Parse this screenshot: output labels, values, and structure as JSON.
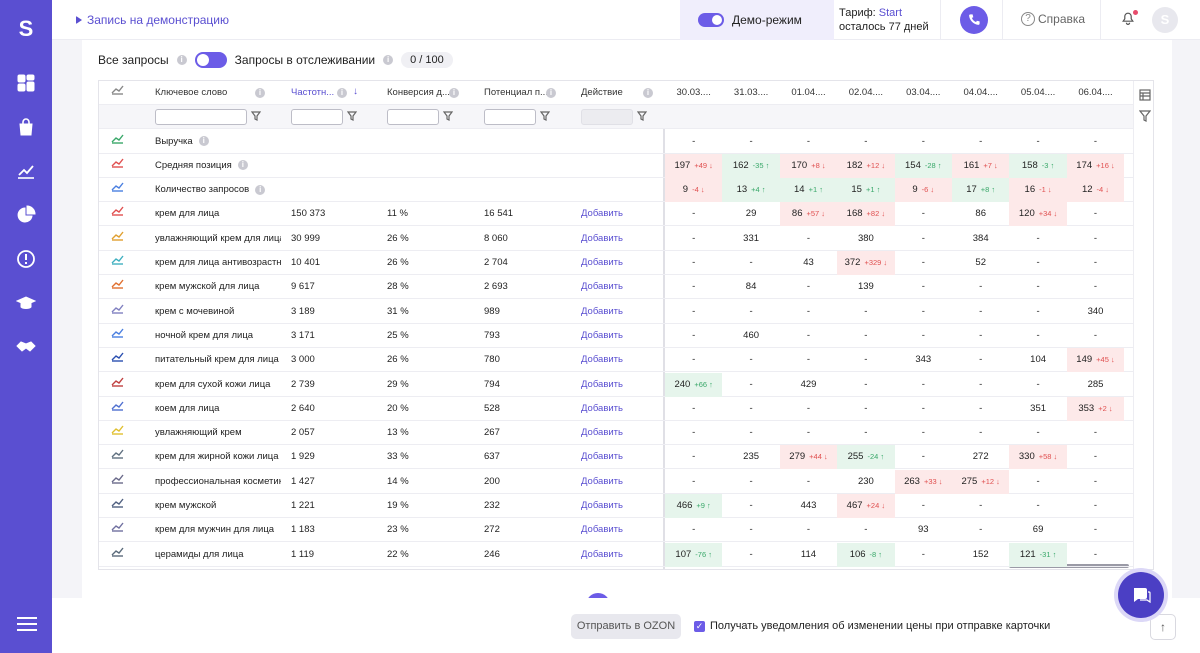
{
  "header": {
    "demo_link": "Запись на демонстрацию",
    "demo_mode": "Демо-режим",
    "tariff_prefix": "Тариф: ",
    "tariff_plan": "Start",
    "tariff_days": "осталось 77 дней",
    "help": "Справка",
    "avatar_letter": "S"
  },
  "sidebar": {
    "logo": "S",
    "items": [
      "dashboard-icon",
      "bag-icon",
      "chart-icon",
      "pie-icon",
      "alert-icon",
      "graduation-icon",
      "handshake-icon"
    ]
  },
  "filters": {
    "all_queries": "Все запросы",
    "tracked": "Запросы в отслеживании",
    "counter": "0 / 100"
  },
  "table": {
    "columns": [
      "Ключевое слово",
      "Частотн...",
      "Конверсия д...",
      "Потенциал п...",
      "Действие"
    ],
    "dates": [
      "30.03....",
      "31.03....",
      "01.04....",
      "02.04....",
      "03.04....",
      "04.04....",
      "05.04....",
      "06.04...."
    ],
    "add_label": "Добавить",
    "summary": [
      {
        "name": "Выручка",
        "color": "#3aa86a",
        "values": [
          [
            "-"
          ],
          [
            "-"
          ],
          [
            "-"
          ],
          [
            "-"
          ],
          [
            "-"
          ],
          [
            "-"
          ],
          [
            "-"
          ],
          [
            "-"
          ]
        ]
      },
      {
        "name": "Средняя позиция",
        "color": "#e05050",
        "values": [
          [
            "197",
            "+49",
            "dn"
          ],
          [
            "162",
            "-35",
            "up"
          ],
          [
            "170",
            "+8",
            "dn"
          ],
          [
            "182",
            "+12",
            "dn"
          ],
          [
            "154",
            "-28",
            "up"
          ],
          [
            "161",
            "+7",
            "dn"
          ],
          [
            "158",
            "-3",
            "up"
          ],
          [
            "174",
            "+16",
            "dn"
          ]
        ]
      },
      {
        "name": "Количество запросов",
        "color": "#4a7fe0",
        "values": [
          [
            "9",
            "-4",
            "dn"
          ],
          [
            "13",
            "+4",
            "up"
          ],
          [
            "14",
            "+1",
            "up"
          ],
          [
            "15",
            "+1",
            "up"
          ],
          [
            "9",
            "-6",
            "dn"
          ],
          [
            "17",
            "+8",
            "up"
          ],
          [
            "16",
            "-1",
            "dn"
          ],
          [
            "12",
            "-4",
            "dn"
          ]
        ]
      }
    ],
    "rows": [
      {
        "kw": "крем для лица",
        "freq": "150 373",
        "conv": "11 %",
        "pot": "16 541",
        "color": "#e05050",
        "values": [
          [
            "-"
          ],
          [
            "29"
          ],
          [
            "86",
            "+57",
            "dn"
          ],
          [
            "168",
            "+82",
            "dn"
          ],
          [
            "-"
          ],
          [
            "86"
          ],
          [
            "120",
            "+34",
            "dn"
          ],
          [
            "-"
          ]
        ]
      },
      {
        "kw": "увлажняющий крем для лица",
        "freq": "30 999",
        "conv": "26 %",
        "pot": "8 060",
        "color": "#e0a030",
        "values": [
          [
            "-"
          ],
          [
            "331"
          ],
          [
            "-"
          ],
          [
            "380"
          ],
          [
            "-"
          ],
          [
            "384"
          ],
          [
            "-"
          ],
          [
            "-"
          ]
        ]
      },
      {
        "kw": "крем для лица антивозрастно",
        "freq": "10 401",
        "conv": "26 %",
        "pot": "2 704",
        "color": "#40b0c0",
        "values": [
          [
            "-"
          ],
          [
            "-"
          ],
          [
            "43"
          ],
          [
            "372",
            "+329",
            "dn"
          ],
          [
            "-"
          ],
          [
            "52"
          ],
          [
            "-"
          ],
          [
            "-"
          ]
        ]
      },
      {
        "kw": "крем мужской для лица",
        "freq": "9 617",
        "conv": "28 %",
        "pot": "2 693",
        "color": "#e07030",
        "values": [
          [
            "-"
          ],
          [
            "84"
          ],
          [
            "-"
          ],
          [
            "139"
          ],
          [
            "-"
          ],
          [
            "-"
          ],
          [
            "-"
          ],
          [
            "-"
          ]
        ]
      },
      {
        "kw": "крем с мочевиной",
        "freq": "3 189",
        "conv": "31 %",
        "pot": "989",
        "color": "#8080c0",
        "values": [
          [
            "-"
          ],
          [
            "-"
          ],
          [
            "-"
          ],
          [
            "-"
          ],
          [
            "-"
          ],
          [
            "-"
          ],
          [
            "-"
          ],
          [
            "340"
          ]
        ]
      },
      {
        "kw": "ночной крем для лица",
        "freq": "3 171",
        "conv": "25 %",
        "pot": "793",
        "color": "#4a7fe0",
        "values": [
          [
            "-"
          ],
          [
            "460"
          ],
          [
            "-"
          ],
          [
            "-"
          ],
          [
            "-"
          ],
          [
            "-"
          ],
          [
            "-"
          ],
          [
            "-"
          ]
        ]
      },
      {
        "kw": "питательный крем для лица",
        "freq": "3 000",
        "conv": "26 %",
        "pot": "780",
        "color": "#2a4fb0",
        "values": [
          [
            "-"
          ],
          [
            "-"
          ],
          [
            "-"
          ],
          [
            "-"
          ],
          [
            "343"
          ],
          [
            "-"
          ],
          [
            "104"
          ],
          [
            "149",
            "+45",
            "dn"
          ]
        ]
      },
      {
        "kw": "крем для сухой кожи лица",
        "freq": "2 739",
        "conv": "29 %",
        "pot": "794",
        "color": "#c04040",
        "values": [
          [
            "240",
            "+66",
            "up"
          ],
          [
            "-"
          ],
          [
            "429"
          ],
          [
            "-"
          ],
          [
            "-"
          ],
          [
            "-"
          ],
          [
            "-"
          ],
          [
            "285"
          ]
        ]
      },
      {
        "kw": "коем для лица",
        "freq": "2 640",
        "conv": "20 %",
        "pot": "528",
        "color": "#5070d0",
        "values": [
          [
            "-"
          ],
          [
            "-"
          ],
          [
            "-"
          ],
          [
            "-"
          ],
          [
            "-"
          ],
          [
            "-"
          ],
          [
            "351"
          ],
          [
            "353",
            "+2",
            "dn"
          ]
        ]
      },
      {
        "kw": "увлажняющий крем",
        "freq": "2 057",
        "conv": "13 %",
        "pot": "267",
        "color": "#e0c030",
        "values": [
          [
            "-"
          ],
          [
            "-"
          ],
          [
            "-"
          ],
          [
            "-"
          ],
          [
            "-"
          ],
          [
            "-"
          ],
          [
            "-"
          ],
          [
            "-"
          ]
        ]
      },
      {
        "kw": "крем для жирной кожи лица",
        "freq": "1 929",
        "conv": "33 %",
        "pot": "637",
        "color": "#607080",
        "values": [
          [
            "-"
          ],
          [
            "235"
          ],
          [
            "279",
            "+44",
            "dn"
          ],
          [
            "255",
            "-24",
            "up"
          ],
          [
            "-"
          ],
          [
            "272"
          ],
          [
            "330",
            "+58",
            "dn"
          ],
          [
            "-"
          ]
        ]
      },
      {
        "kw": "профессиональная косметика",
        "freq": "1 427",
        "conv": "14 %",
        "pot": "200",
        "color": "#6a6a8a",
        "values": [
          [
            "-"
          ],
          [
            "-"
          ],
          [
            "-"
          ],
          [
            "230"
          ],
          [
            "263",
            "+33",
            "dn"
          ],
          [
            "275",
            "+12",
            "dn"
          ],
          [
            "-"
          ],
          [
            "-"
          ]
        ]
      },
      {
        "kw": "крем мужской",
        "freq": "1 221",
        "conv": "19 %",
        "pot": "232",
        "color": "#506080",
        "values": [
          [
            "466",
            "+9",
            "up"
          ],
          [
            "-"
          ],
          [
            "443"
          ],
          [
            "467",
            "+24",
            "dn"
          ],
          [
            "-"
          ],
          [
            "-"
          ],
          [
            "-"
          ],
          [
            "-"
          ]
        ]
      },
      {
        "kw": "крем для мужчин для лица",
        "freq": "1 183",
        "conv": "23 %",
        "pot": "272",
        "color": "#7070a0",
        "values": [
          [
            "-"
          ],
          [
            "-"
          ],
          [
            "-"
          ],
          [
            "-"
          ],
          [
            "93"
          ],
          [
            "-"
          ],
          [
            "69"
          ],
          [
            "-"
          ]
        ]
      },
      {
        "kw": "церамиды для лица",
        "freq": "1 119",
        "conv": "22 %",
        "pot": "246",
        "color": "#5a6a7a",
        "values": [
          [
            "107",
            "-76",
            "up"
          ],
          [
            "-"
          ],
          [
            "114"
          ],
          [
            "106",
            "-8",
            "up"
          ],
          [
            "-"
          ],
          [
            "152"
          ],
          [
            "121",
            "-31",
            "up"
          ],
          [
            "-"
          ]
        ]
      }
    ]
  },
  "bottom": {
    "ozon_button": "Отправить в OZON",
    "notify_label": "Получать уведомления об изменении цены при отправке карточки"
  }
}
